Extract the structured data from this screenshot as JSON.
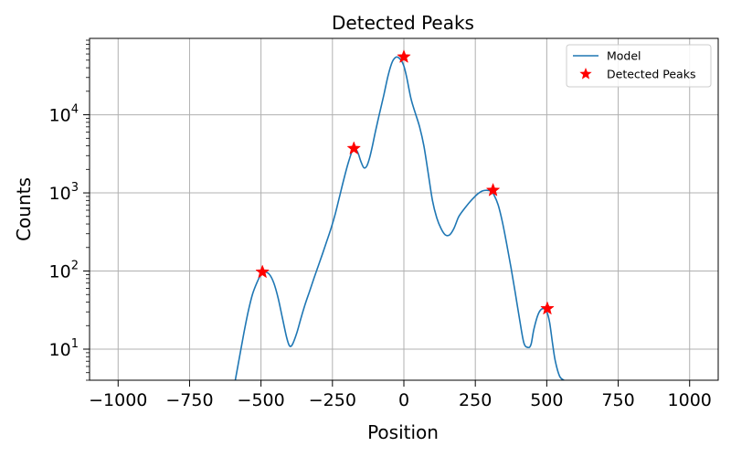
{
  "chart_data": {
    "type": "line",
    "title": "Detected Peaks",
    "xlabel": "Position",
    "ylabel": "Counts",
    "xlim": [
      -1100,
      1100
    ],
    "ylim": [
      4,
      95000
    ],
    "yscale": "log",
    "grid": true,
    "legend_position": "top-right",
    "x_ticks": [
      -1000,
      -750,
      -500,
      -250,
      0,
      250,
      500,
      750,
      1000
    ],
    "x_tick_labels": [
      "−1000",
      "−750",
      "−500",
      "−250",
      "0",
      "250",
      "500",
      "750",
      "1000"
    ],
    "y_ticks": [
      10,
      100,
      1000,
      10000
    ],
    "y_tick_labels": [
      {
        "base": "10",
        "exp": "1"
      },
      {
        "base": "10",
        "exp": "2"
      },
      {
        "base": "10",
        "exp": "3"
      },
      {
        "base": "10",
        "exp": "4"
      }
    ],
    "series": [
      {
        "name": "Model",
        "kind": "line",
        "color": "#1f77b4",
        "x": [
          -590,
          -575,
          -560,
          -545,
          -530,
          -515,
          -500,
          -485,
          -470,
          -455,
          -440,
          -425,
          -410,
          -400,
          -390,
          -375,
          -360,
          -345,
          -330,
          -315,
          -300,
          -285,
          -270,
          -255,
          -240,
          -225,
          -210,
          -195,
          -180,
          -170,
          -160,
          -150,
          -140,
          -130,
          -120,
          -110,
          -100,
          -85,
          -70,
          -55,
          -40,
          -25,
          -10,
          0,
          10,
          25,
          40,
          55,
          70,
          85,
          100,
          115,
          130,
          145,
          160,
          175,
          190,
          200,
          215,
          230,
          245,
          260,
          275,
          290,
          305,
          315,
          330,
          345,
          360,
          375,
          390,
          405,
          420,
          435,
          445,
          455,
          470,
          485,
          500,
          510,
          520,
          530,
          545,
          560
        ],
        "y": [
          4,
          8,
          16,
          30,
          50,
          70,
          90,
          97,
          90,
          70,
          45,
          25,
          14,
          11,
          11.5,
          16,
          25,
          38,
          55,
          80,
          115,
          165,
          240,
          350,
          540,
          900,
          1500,
          2400,
          3500,
          3700,
          3200,
          2500,
          2100,
          2200,
          2800,
          4000,
          6000,
          10500,
          18000,
          32000,
          48000,
          55000,
          50000,
          42000,
          30000,
          16000,
          10500,
          7000,
          4000,
          1800,
          800,
          480,
          350,
          290,
          290,
          350,
          480,
          550,
          650,
          760,
          870,
          980,
          1060,
          1080,
          1050,
          950,
          700,
          420,
          220,
          110,
          52,
          24,
          12,
          10.5,
          11.5,
          18,
          28,
          33,
          30,
          22,
          12,
          7,
          4.5,
          4
        ]
      },
      {
        "name": "Detected Peaks",
        "kind": "marker",
        "color": "#ff0000",
        "marker": "star",
        "x": [
          -495,
          -175,
          0,
          312,
          502
        ],
        "y": [
          97,
          3700,
          55000,
          1080,
          33
        ]
      }
    ]
  }
}
